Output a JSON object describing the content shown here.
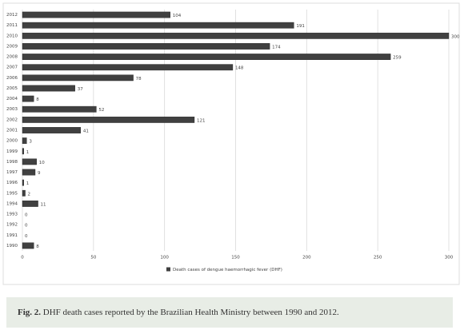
{
  "chart_data": {
    "type": "hbar",
    "categories": [
      "2012",
      "2011",
      "2010",
      "2009",
      "2008",
      "2007",
      "2006",
      "2005",
      "2004",
      "2003",
      "2002",
      "2001",
      "2000",
      "1999",
      "1998",
      "1997",
      "1996",
      "1995",
      "1994",
      "1993",
      "1992",
      "1991",
      "1990"
    ],
    "series": [
      {
        "name": "Death cases of dengue haemorrhagic fever (DHF)",
        "color": "#404040",
        "values": [
          104,
          191,
          300,
          174,
          259,
          148,
          78,
          37,
          8,
          52,
          121,
          41,
          3,
          1,
          10,
          9,
          1,
          2,
          11,
          0,
          0,
          0,
          8
        ]
      }
    ],
    "xlim": [
      0,
      300
    ],
    "xticks": [
      0,
      50,
      100,
      150,
      200,
      250,
      300
    ],
    "grid": true,
    "legend": "bottom"
  },
  "caption": {
    "label": "Fig. 2.",
    "text": "DHF death cases reported by the Brazilian Health Ministry between 1990 and 2012."
  }
}
